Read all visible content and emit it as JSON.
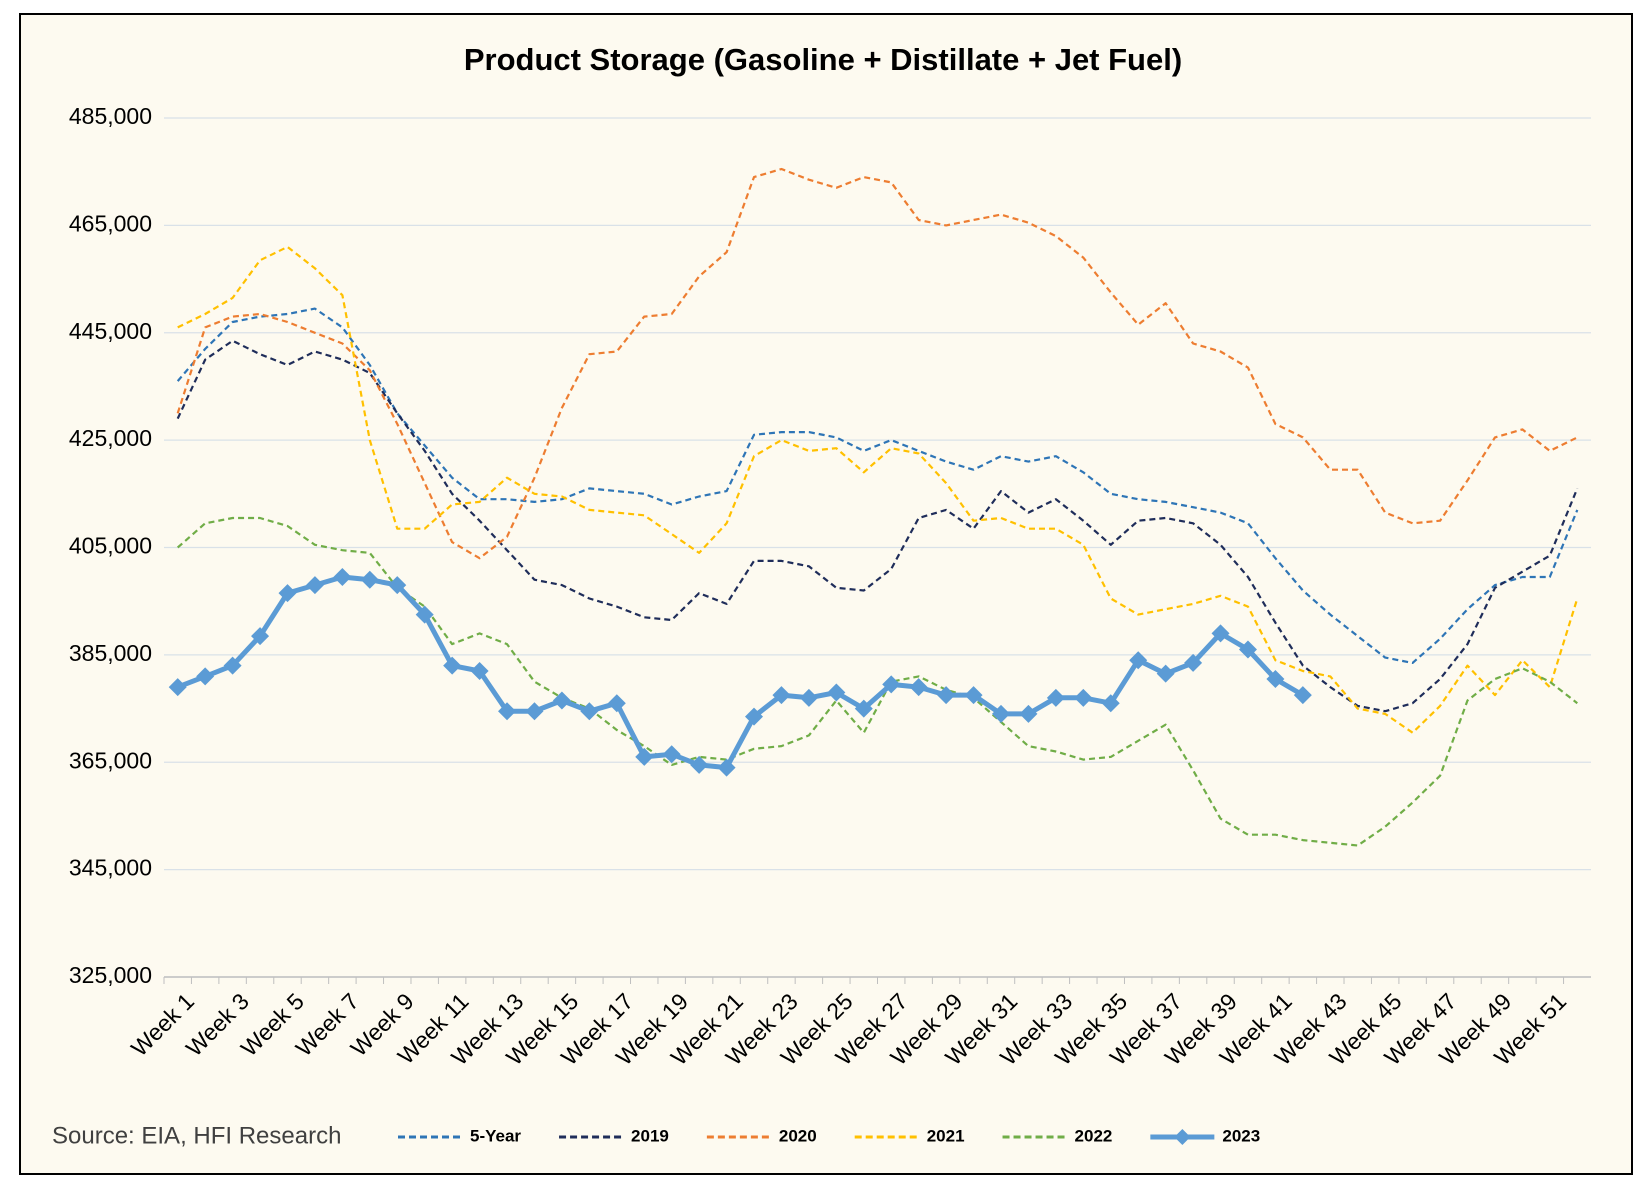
{
  "chart_data": {
    "type": "line",
    "title": "Product Storage (Gasoline + Distillate + Jet Fuel)",
    "source": "Source: EIA, HFI Research",
    "categories": [
      "Week 1",
      null,
      "Week 3",
      null,
      "Week 5",
      null,
      "Week 7",
      null,
      "Week 9",
      null,
      "Week 11",
      null,
      "Week 13",
      null,
      "Week 15",
      null,
      "Week 17",
      null,
      "Week 19",
      null,
      "Week 21",
      null,
      "Week 23",
      null,
      "Week 25",
      null,
      "Week 27",
      null,
      "Week 29",
      null,
      "Week 31",
      null,
      "Week 33",
      null,
      "Week 35",
      null,
      "Week 37",
      null,
      "Week 39",
      null,
      "Week 41",
      null,
      "Week 43",
      null,
      "Week 45",
      null,
      "Week 47",
      null,
      "Week 49",
      null,
      "Week 51",
      null
    ],
    "ylim": [
      325000,
      485000
    ],
    "yticks": [
      {
        "value": 325000,
        "label": "325,000"
      },
      {
        "value": 345000,
        "label": "345,000"
      },
      {
        "value": 365000,
        "label": "365,000"
      },
      {
        "value": 385000,
        "label": "385,000"
      },
      {
        "value": 405000,
        "label": "405,000"
      },
      {
        "value": 425000,
        "label": "425,000"
      },
      {
        "value": 445000,
        "label": "445,000"
      },
      {
        "value": 465000,
        "label": "465,000"
      },
      {
        "value": 485000,
        "label": "485,000"
      }
    ],
    "grid": true,
    "legend": "bottom",
    "series": [
      {
        "name": "5-Year",
        "color": "#2e75b6",
        "style": "dashed",
        "values": [
          436000,
          442000,
          447000,
          448000,
          448500,
          449500,
          446000,
          439000,
          430000,
          424000,
          418000,
          414000,
          414000,
          413500,
          414000,
          416000,
          415500,
          415000,
          413000,
          414500,
          415500,
          426000,
          426500,
          426500,
          425500,
          423000,
          425000,
          423000,
          421000,
          419500,
          422000,
          421000,
          422000,
          419000,
          415000,
          414000,
          413500,
          412500,
          411500,
          409500,
          403000,
          397000,
          392500,
          388500,
          384500,
          383500,
          388000,
          393500,
          398000,
          399500,
          399500,
          412000
        ]
      },
      {
        "name": "2019",
        "color": "#1f2d5a",
        "style": "dashed",
        "values": [
          429000,
          440000,
          443500,
          441000,
          439000,
          441500,
          440000,
          437500,
          430000,
          423000,
          415000,
          410000,
          404500,
          399000,
          398000,
          395500,
          394000,
          392000,
          391500,
          396500,
          394500,
          402500,
          402500,
          401500,
          397500,
          397000,
          401000,
          410500,
          412000,
          408500,
          415500,
          411500,
          414000,
          410000,
          405500,
          410000,
          410500,
          409500,
          405500,
          399500,
          391000,
          383000,
          379000,
          375500,
          374500,
          376000,
          380500,
          387000,
          397500,
          400500,
          403500,
          416000
        ]
      },
      {
        "name": "2020",
        "color": "#ed7d31",
        "style": "dashed",
        "values": [
          430000,
          446000,
          448000,
          448500,
          447000,
          445000,
          443000,
          438000,
          428000,
          417000,
          406000,
          403000,
          407000,
          418000,
          431000,
          441000,
          441500,
          448000,
          448500,
          455500,
          460000,
          474000,
          475500,
          473500,
          472000,
          474000,
          473000,
          466000,
          465000,
          466000,
          467000,
          465500,
          463000,
          459000,
          452500,
          446500,
          450500,
          443000,
          441500,
          438500,
          428000,
          425500,
          419500,
          419500,
          411500,
          409500,
          410000,
          417500,
          425500,
          427000,
          423000,
          425500
        ]
      },
      {
        "name": "2021",
        "color": "#ffc000",
        "style": "dashed",
        "values": [
          446000,
          448500,
          451500,
          458500,
          461000,
          457000,
          452000,
          425000,
          408500,
          408500,
          413000,
          413500,
          418000,
          415000,
          414500,
          412000,
          411500,
          411000,
          407500,
          404000,
          409500,
          422000,
          425000,
          423000,
          423500,
          419000,
          423500,
          422500,
          417000,
          410000,
          410500,
          408500,
          408500,
          405500,
          395500,
          392500,
          393500,
          394500,
          396000,
          394000,
          384000,
          382000,
          381000,
          375000,
          374000,
          370500,
          375500,
          383000,
          377500,
          384000,
          379000,
          395500
        ]
      },
      {
        "name": "2022",
        "color": "#70ad47",
        "style": "dashed",
        "values": [
          405000,
          409500,
          410500,
          410500,
          409000,
          405500,
          404500,
          404000,
          397500,
          394000,
          387000,
          389000,
          387000,
          380000,
          377000,
          375000,
          371000,
          368000,
          364500,
          366000,
          365500,
          367500,
          368000,
          370000,
          376500,
          370500,
          380000,
          381000,
          378500,
          377000,
          372500,
          368000,
          367000,
          365500,
          366000,
          369000,
          372000,
          363500,
          354500,
          351500,
          351500,
          350500,
          350000,
          349500,
          353000,
          357500,
          362500,
          376500,
          380500,
          382500,
          380000,
          376000
        ]
      },
      {
        "name": "2023",
        "color": "#5b9bd5",
        "style": "solid",
        "marker": "diamond",
        "values": [
          379000,
          381000,
          383000,
          388500,
          396500,
          398000,
          399500,
          399000,
          398000,
          392500,
          383000,
          382000,
          374500,
          374500,
          376500,
          374500,
          376000,
          366000,
          366500,
          364500,
          364000,
          373500,
          377500,
          377000,
          378000,
          375000,
          379500,
          379000,
          377500,
          377500,
          374000,
          374000,
          377000,
          377000,
          376000,
          384000,
          381500,
          383500,
          389000,
          386000,
          380500,
          377500,
          null,
          null,
          null,
          null,
          null,
          null,
          null,
          null,
          null,
          null
        ]
      }
    ]
  }
}
